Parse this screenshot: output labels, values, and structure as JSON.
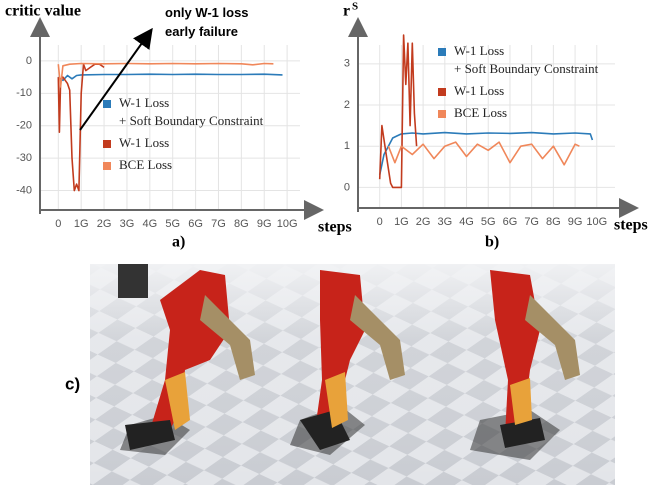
{
  "chart_data": [
    {
      "type": "line",
      "y_label": "critic value",
      "x_label": "steps",
      "panel_label": "a)",
      "annotation": "only W-1 loss\nearly failure",
      "legend": "center-right",
      "grid": true,
      "xlim": [
        -0.8,
        11
      ],
      "ylim": [
        -46,
        8
      ],
      "xticks": [
        0,
        {
          "value": 1,
          "label": "1G"
        },
        {
          "value": 2,
          "label": "2G"
        },
        {
          "value": 3,
          "label": "3G"
        },
        {
          "value": 4,
          "label": "4G"
        },
        {
          "value": 5,
          "label": "5G"
        },
        {
          "value": 6,
          "label": "6G"
        },
        {
          "value": 7,
          "label": "7G"
        },
        {
          "value": 8,
          "label": "8G"
        },
        {
          "value": 9,
          "label": "9G"
        },
        {
          "value": 10,
          "label": "10G"
        }
      ],
      "yticks": [
        0,
        -10,
        -20,
        -30,
        -40
      ],
      "series": [
        {
          "name": "W-1 Loss\n+ Soft Boundary Constraint",
          "color": "#2b7bb9",
          "x": [
            0,
            0.2,
            0.4,
            0.6,
            0.8,
            1,
            2,
            3,
            4,
            5,
            6,
            7,
            8,
            9,
            9.8
          ],
          "values": [
            -5,
            -6,
            -4.5,
            -5.5,
            -4.5,
            -4.3,
            -4.2,
            -4.2,
            -4.1,
            -4.2,
            -4.1,
            -4.2,
            -4.2,
            -4.1,
            -4.3
          ]
        },
        {
          "name": "W-1 Loss",
          "color": "#c23b1e",
          "x": [
            0,
            0.05,
            0.1,
            0.2,
            0.4,
            0.5,
            0.6,
            0.7,
            0.8,
            0.9,
            1,
            1.1,
            1.2,
            1.4,
            1.6,
            1.8,
            2
          ],
          "values": [
            -5,
            -22,
            -6,
            -5,
            -7,
            -9,
            -30,
            -40,
            -38,
            -40,
            -10,
            -1,
            -3,
            -2,
            -1,
            -1,
            -2
          ]
        },
        {
          "name": "BCE Loss",
          "color": "#f0875a",
          "x": [
            0,
            0.1,
            0.2,
            0.5,
            1,
            2,
            3,
            4,
            5,
            6,
            7,
            8,
            8.5,
            9,
            9.4
          ],
          "values": [
            -1,
            -8,
            -1.5,
            -1,
            -0.8,
            -0.9,
            -0.8,
            -0.9,
            -0.8,
            -0.9,
            -0.8,
            -0.9,
            -1.2,
            -0.8,
            -0.9
          ]
        }
      ]
    },
    {
      "type": "line",
      "y_label": "r",
      "y_label_superscript": "S",
      "x_label": "steps",
      "panel_label": "b)",
      "legend": "upper-right",
      "grid": true,
      "xlim": [
        -1,
        11.3
      ],
      "ylim": [
        -0.5,
        3.7
      ],
      "xticks": [
        0,
        {
          "value": 1,
          "label": "1G"
        },
        {
          "value": 2,
          "label": "2G"
        },
        {
          "value": 3,
          "label": "3G"
        },
        {
          "value": 4,
          "label": "4G"
        },
        {
          "value": 5,
          "label": "5G"
        },
        {
          "value": 6,
          "label": "6G"
        },
        {
          "value": 7,
          "label": "7G"
        },
        {
          "value": 8,
          "label": "8G"
        },
        {
          "value": 9,
          "label": "9G"
        },
        {
          "value": 10,
          "label": "10G"
        }
      ],
      "yticks": [
        0,
        1,
        2,
        3
      ],
      "series": [
        {
          "name": "W-1 Loss\n+ Soft Boundary Constraint",
          "color": "#2b7bb9",
          "x": [
            0,
            0.2,
            0.4,
            0.6,
            0.8,
            1,
            1.5,
            2,
            3,
            4,
            5,
            6,
            7,
            8,
            9,
            9.7,
            9.8
          ],
          "values": [
            0.3,
            0.8,
            1.0,
            1.2,
            1.25,
            1.3,
            1.32,
            1.3,
            1.33,
            1.3,
            1.32,
            1.31,
            1.33,
            1.3,
            1.32,
            1.3,
            1.15
          ]
        },
        {
          "name": "W-1 Loss",
          "color": "#c23b1e",
          "x": [
            0,
            0.1,
            0.3,
            0.5,
            0.6,
            1,
            1.1,
            1.2,
            1.3,
            1.4,
            1.5,
            1.6,
            1.7
          ],
          "values": [
            0.2,
            1.5,
            0.8,
            0.1,
            0,
            0,
            3.7,
            2.5,
            3.5,
            1.5,
            3.5,
            1.8,
            1.0
          ]
        },
        {
          "name": "BCE Loss",
          "color": "#f0875a",
          "x": [
            0.4,
            0.7,
            1,
            1.5,
            2,
            2.5,
            3,
            3.5,
            4,
            4.5,
            5,
            5.5,
            6,
            6.5,
            7,
            7.5,
            8,
            8.5,
            9,
            9.2
          ],
          "values": [
            1.0,
            0.6,
            1.0,
            0.8,
            1.05,
            0.7,
            1.0,
            1.1,
            0.75,
            1.05,
            0.9,
            1.1,
            0.6,
            1.0,
            1.05,
            0.7,
            1.0,
            0.55,
            1.05,
            1.0
          ]
        }
      ]
    }
  ],
  "image_panel": {
    "label": "c)"
  }
}
